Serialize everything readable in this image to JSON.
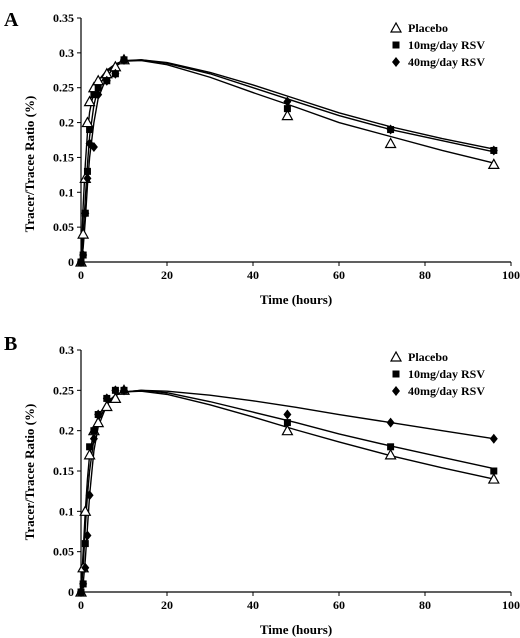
{
  "chart_data": [
    {
      "type": "scatter",
      "panel_label": "A",
      "xlabel": "Time (hours)",
      "ylabel": "Tracer/Tracee Ratio (%)",
      "xlim": [
        0,
        100
      ],
      "ylim": [
        0,
        0.35
      ],
      "xticks": [
        0,
        20,
        40,
        60,
        80,
        100
      ],
      "yticks": [
        0,
        0.05,
        0.1,
        0.15,
        0.2,
        0.25,
        0.3,
        0.35
      ],
      "ytick_labels": [
        "0",
        "0.05",
        "0.1",
        "0.15",
        "0.2",
        "0.25",
        "0.3",
        "0.35"
      ],
      "legend_position": "top-right",
      "grid": false,
      "series": [
        {
          "name": "Placebo",
          "marker": "open-triangle",
          "points": [
            [
              0,
              0
            ],
            [
              0.5,
              0.04
            ],
            [
              1,
              0.12
            ],
            [
              1.5,
              0.2
            ],
            [
              2,
              0.23
            ],
            [
              3,
              0.25
            ],
            [
              4,
              0.26
            ],
            [
              6,
              0.27
            ],
            [
              8,
              0.28
            ],
            [
              10,
              0.29
            ],
            [
              48,
              0.21
            ],
            [
              72,
              0.17
            ],
            [
              96,
              0.14
            ]
          ],
          "fit": [
            [
              0,
              0
            ],
            [
              0.5,
              0.08
            ],
            [
              1,
              0.14
            ],
            [
              1.5,
              0.185
            ],
            [
              2,
              0.215
            ],
            [
              3,
              0.245
            ],
            [
              4,
              0.26
            ],
            [
              6,
              0.275
            ],
            [
              8,
              0.284
            ],
            [
              10,
              0.288
            ],
            [
              14,
              0.289
            ],
            [
              20,
              0.283
            ],
            [
              30,
              0.265
            ],
            [
              40,
              0.243
            ],
            [
              50,
              0.222
            ],
            [
              60,
              0.2
            ],
            [
              72,
              0.18
            ],
            [
              84,
              0.16
            ],
            [
              96,
              0.142
            ]
          ]
        },
        {
          "name": "10mg/day RSV",
          "marker": "filled-square",
          "points": [
            [
              0,
              0
            ],
            [
              0.5,
              0.01
            ],
            [
              1,
              0.07
            ],
            [
              1.5,
              0.13
            ],
            [
              2,
              0.19
            ],
            [
              3,
              0.24
            ],
            [
              4,
              0.25
            ],
            [
              6,
              0.26
            ],
            [
              8,
              0.27
            ],
            [
              10,
              0.29
            ],
            [
              48,
              0.22
            ],
            [
              72,
              0.19
            ],
            [
              96,
              0.16
            ]
          ],
          "fit": [
            [
              0,
              0
            ],
            [
              0.5,
              0.04
            ],
            [
              1,
              0.09
            ],
            [
              1.5,
              0.14
            ],
            [
              2,
              0.18
            ],
            [
              3,
              0.225
            ],
            [
              4,
              0.25
            ],
            [
              6,
              0.272
            ],
            [
              8,
              0.284
            ],
            [
              10,
              0.289
            ],
            [
              14,
              0.29
            ],
            [
              20,
              0.285
            ],
            [
              30,
              0.27
            ],
            [
              40,
              0.25
            ],
            [
              50,
              0.23
            ],
            [
              60,
              0.21
            ],
            [
              72,
              0.19
            ],
            [
              84,
              0.174
            ],
            [
              96,
              0.158
            ]
          ]
        },
        {
          "name": "40mg/day RSV",
          "marker": "filled-diamond",
          "points": [
            [
              0,
              0
            ],
            [
              0.5,
              0.01
            ],
            [
              1,
              0.07
            ],
            [
              1.5,
              0.12
            ],
            [
              2,
              0.17
            ],
            [
              3,
              0.165
            ],
            [
              4,
              0.24
            ],
            [
              6,
              0.26
            ],
            [
              8,
              0.27
            ],
            [
              10,
              0.29
            ],
            [
              48,
              0.23
            ],
            [
              72,
              0.19
            ],
            [
              96,
              0.16
            ]
          ],
          "fit": [
            [
              0,
              0
            ],
            [
              0.5,
              0.02
            ],
            [
              1,
              0.06
            ],
            [
              1.5,
              0.11
            ],
            [
              2,
              0.15
            ],
            [
              3,
              0.2
            ],
            [
              4,
              0.235
            ],
            [
              6,
              0.266
            ],
            [
              8,
              0.281
            ],
            [
              10,
              0.288
            ],
            [
              14,
              0.29
            ],
            [
              20,
              0.286
            ],
            [
              30,
              0.272
            ],
            [
              40,
              0.254
            ],
            [
              50,
              0.234
            ],
            [
              60,
              0.214
            ],
            [
              72,
              0.194
            ],
            [
              84,
              0.177
            ],
            [
              96,
              0.162
            ]
          ]
        }
      ]
    },
    {
      "type": "scatter",
      "panel_label": "B",
      "xlabel": "Time (hours)",
      "ylabel": "Tracer/Tracee Ratio (%)",
      "xlim": [
        0,
        100
      ],
      "ylim": [
        0,
        0.3
      ],
      "xticks": [
        0,
        20,
        40,
        60,
        80,
        100
      ],
      "yticks": [
        0,
        0.05,
        0.1,
        0.15,
        0.2,
        0.25,
        0.3
      ],
      "ytick_labels": [
        "0",
        "0.05",
        "0.1",
        "0.15",
        "0.2",
        "0.25",
        "0.3"
      ],
      "legend_position": "top-right",
      "grid": false,
      "series": [
        {
          "name": "Placebo",
          "marker": "open-triangle",
          "points": [
            [
              0,
              0
            ],
            [
              0.5,
              0.03
            ],
            [
              1,
              0.1
            ],
            [
              2,
              0.17
            ],
            [
              3,
              0.2
            ],
            [
              4,
              0.21
            ],
            [
              6,
              0.23
            ],
            [
              8,
              0.24
            ],
            [
              10,
              0.25
            ],
            [
              48,
              0.2
            ],
            [
              72,
              0.17
            ],
            [
              96,
              0.14
            ]
          ],
          "fit": [
            [
              0,
              0
            ],
            [
              0.5,
              0.05
            ],
            [
              1,
              0.1
            ],
            [
              1.5,
              0.14
            ],
            [
              2,
              0.17
            ],
            [
              3,
              0.2
            ],
            [
              4,
              0.218
            ],
            [
              6,
              0.235
            ],
            [
              8,
              0.244
            ],
            [
              10,
              0.248
            ],
            [
              14,
              0.249
            ],
            [
              20,
              0.245
            ],
            [
              30,
              0.232
            ],
            [
              40,
              0.217
            ],
            [
              50,
              0.201
            ],
            [
              60,
              0.186
            ],
            [
              72,
              0.169
            ],
            [
              84,
              0.154
            ],
            [
              96,
              0.14
            ]
          ]
        },
        {
          "name": "10mg/day RSV",
          "marker": "filled-square",
          "points": [
            [
              0,
              0
            ],
            [
              0.5,
              0.01
            ],
            [
              1,
              0.06
            ],
            [
              2,
              0.18
            ],
            [
              3,
              0.2
            ],
            [
              4,
              0.22
            ],
            [
              6,
              0.24
            ],
            [
              8,
              0.25
            ],
            [
              10,
              0.25
            ],
            [
              48,
              0.21
            ],
            [
              72,
              0.18
            ],
            [
              96,
              0.15
            ]
          ],
          "fit": [
            [
              0,
              0
            ],
            [
              0.5,
              0.03
            ],
            [
              1,
              0.08
            ],
            [
              1.5,
              0.12
            ],
            [
              2,
              0.15
            ],
            [
              3,
              0.19
            ],
            [
              4,
              0.212
            ],
            [
              6,
              0.233
            ],
            [
              8,
              0.244
            ],
            [
              10,
              0.248
            ],
            [
              14,
              0.25
            ],
            [
              20,
              0.247
            ],
            [
              30,
              0.236
            ],
            [
              40,
              0.223
            ],
            [
              50,
              0.21
            ],
            [
              60,
              0.196
            ],
            [
              72,
              0.181
            ],
            [
              84,
              0.167
            ],
            [
              96,
              0.153
            ]
          ]
        },
        {
          "name": "40mg/day RSV",
          "marker": "filled-diamond",
          "points": [
            [
              0,
              0
            ],
            [
              0.5,
              0.01
            ],
            [
              1,
              0.03
            ],
            [
              1.5,
              0.07
            ],
            [
              2,
              0.12
            ],
            [
              3,
              0.19
            ],
            [
              4,
              0.22
            ],
            [
              6,
              0.24
            ],
            [
              8,
              0.25
            ],
            [
              10,
              0.25
            ],
            [
              48,
              0.22
            ],
            [
              72,
              0.21
            ],
            [
              96,
              0.19
            ]
          ],
          "fit": [
            [
              0,
              0
            ],
            [
              0.5,
              0.01
            ],
            [
              1,
              0.04
            ],
            [
              1.5,
              0.08
            ],
            [
              2,
              0.12
            ],
            [
              3,
              0.175
            ],
            [
              4,
              0.205
            ],
            [
              6,
              0.232
            ],
            [
              8,
              0.244
            ],
            [
              10,
              0.248
            ],
            [
              14,
              0.25
            ],
            [
              20,
              0.249
            ],
            [
              30,
              0.244
            ],
            [
              40,
              0.237
            ],
            [
              50,
              0.229
            ],
            [
              60,
              0.22
            ],
            [
              72,
              0.21
            ],
            [
              84,
              0.2
            ],
            [
              96,
              0.19
            ]
          ]
        }
      ]
    }
  ]
}
